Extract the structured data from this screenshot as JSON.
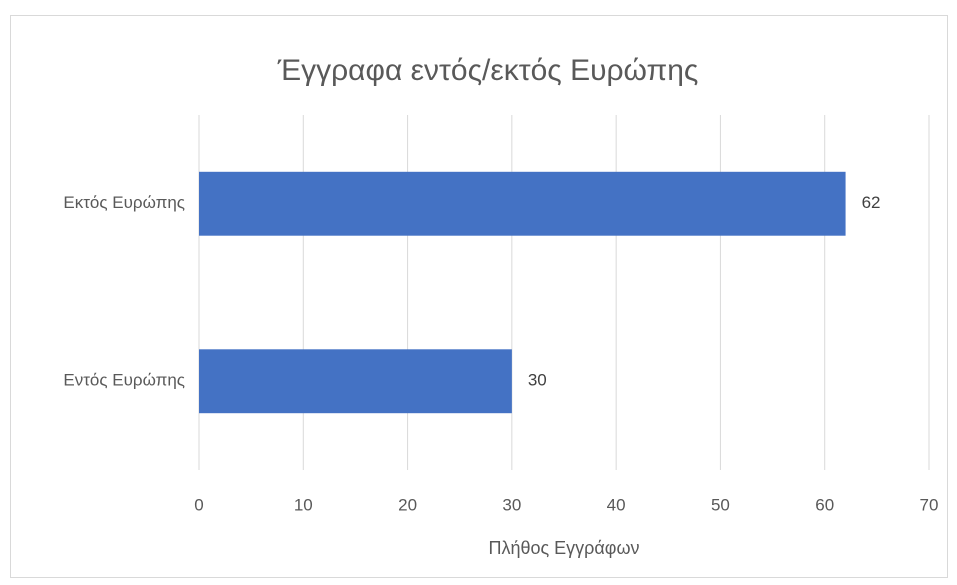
{
  "chart_data": {
    "type": "bar",
    "orientation": "horizontal",
    "title": "Έγγραφα εντός/εκτός Ευρώπης",
    "x_label": "Πλήθος Εγγράφων",
    "categories": [
      "Εντός Ευρώπης",
      "Εκτός Ευρώπης"
    ],
    "values": [
      30,
      62
    ],
    "color": "#4472c4",
    "xlim": [
      0,
      70
    ],
    "xticks": [
      0,
      10,
      20,
      30,
      40,
      50,
      60,
      70
    ],
    "grid": true
  }
}
